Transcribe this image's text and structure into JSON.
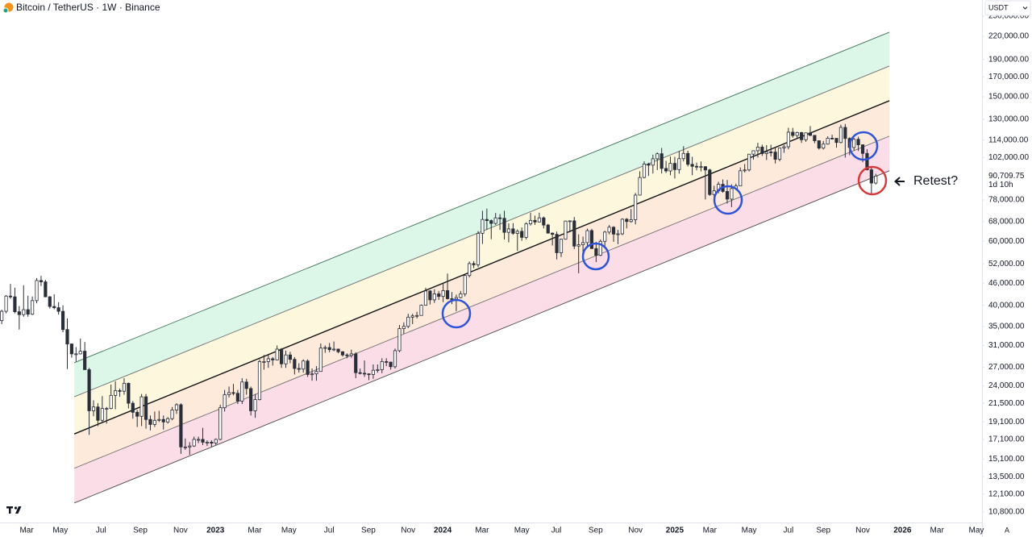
{
  "chart_data": {
    "type": "candlestick",
    "title": "Bitcoin / TetherUS · 1W · Binance",
    "currency": "USDT",
    "auto_button": "A",
    "log_scale": true,
    "grid": false,
    "xlim": [
      -0.4,
      224.3
    ],
    "ylim": [
      10100,
      276800
    ],
    "xticks": [
      {
        "value": 5.7,
        "label": "Mar"
      },
      {
        "value": 13.4,
        "label": "May"
      },
      {
        "value": 22.7,
        "label": "Jul"
      },
      {
        "value": 31.7,
        "label": "Sep"
      },
      {
        "value": 40.9,
        "label": "Nov"
      },
      {
        "value": 48.9,
        "label": "2023"
      },
      {
        "value": 57.9,
        "label": "Mar"
      },
      {
        "value": 65.7,
        "label": "May"
      },
      {
        "value": 74.9,
        "label": "Jul"
      },
      {
        "value": 83.9,
        "label": "Sep"
      },
      {
        "value": 93.0,
        "label": "Nov"
      },
      {
        "value": 100.9,
        "label": "2024"
      },
      {
        "value": 109.9,
        "label": "Mar"
      },
      {
        "value": 119.0,
        "label": "May"
      },
      {
        "value": 126.9,
        "label": "Jul"
      },
      {
        "value": 135.9,
        "label": "Sep"
      },
      {
        "value": 145.0,
        "label": "Nov"
      },
      {
        "value": 154.0,
        "label": "2025"
      },
      {
        "value": 162.0,
        "label": "Mar"
      },
      {
        "value": 171.0,
        "label": "May"
      },
      {
        "value": 180.0,
        "label": "Jul"
      },
      {
        "value": 188.0,
        "label": "Sep"
      },
      {
        "value": 197.0,
        "label": "Nov"
      },
      {
        "value": 206.1,
        "label": "2026"
      },
      {
        "value": 214.0,
        "label": "Mar"
      },
      {
        "value": 223.0,
        "label": "May"
      }
    ],
    "yticks": [
      {
        "value": 10800,
        "label": "10,800.00"
      },
      {
        "value": 12100,
        "label": "12,100.00"
      },
      {
        "value": 13500,
        "label": "13,500.00"
      },
      {
        "value": 15100,
        "label": "15,100.00"
      },
      {
        "value": 17100,
        "label": "17,100.00"
      },
      {
        "value": 19100,
        "label": "19,100.00"
      },
      {
        "value": 21500,
        "label": "21,500.00"
      },
      {
        "value": 24000,
        "label": "24,000.00"
      },
      {
        "value": 27000,
        "label": "27,000.00"
      },
      {
        "value": 31000,
        "label": "31,000.00"
      },
      {
        "value": 35000,
        "label": "35,000.00"
      },
      {
        "value": 40000,
        "label": "40,000.00"
      },
      {
        "value": 46000,
        "label": "46,000.00"
      },
      {
        "value": 52000,
        "label": "52,000.00"
      },
      {
        "value": 60000,
        "label": "60,000.00"
      },
      {
        "value": 68000,
        "label": "68,000.00"
      },
      {
        "value": 78000,
        "label": "78,000.00"
      },
      {
        "value": 102000,
        "label": "102,000.00"
      },
      {
        "value": 114000,
        "label": "114,000.00"
      },
      {
        "value": 130000,
        "label": "130,000.00"
      },
      {
        "value": 150000,
        "label": "150,000.00"
      },
      {
        "value": 170000,
        "label": "170,000.00"
      },
      {
        "value": 190000,
        "label": "190,000.00"
      },
      {
        "value": 220000,
        "label": "220,000.00"
      },
      {
        "value": 250000,
        "label": "250,000.00"
      }
    ],
    "up_color": "#ffffff",
    "down_color": "#2a2e39",
    "border_color": "#2a2e39",
    "ohlc": [
      [
        36300,
        38900,
        35500,
        38500
      ],
      [
        38500,
        42700,
        38000,
        42400
      ],
      [
        42400,
        45800,
        41700,
        42200
      ],
      [
        42200,
        44700,
        38000,
        38400
      ],
      [
        38400,
        39800,
        34300,
        37700
      ],
      [
        37700,
        45400,
        37200,
        38900
      ],
      [
        38900,
        42500,
        37200,
        37800
      ],
      [
        37800,
        42300,
        37600,
        41200
      ],
      [
        41200,
        47500,
        40500,
        46800
      ],
      [
        46800,
        48200,
        45200,
        46400
      ],
      [
        46400,
        47000,
        42100,
        42200
      ],
      [
        42200,
        42400,
        39200,
        39700
      ],
      [
        39700,
        42900,
        39000,
        39400
      ],
      [
        39400,
        40800,
        37700,
        38500
      ],
      [
        38500,
        40000,
        33700,
        34300
      ],
      [
        34300,
        36800,
        26700,
        31300
      ],
      [
        31300,
        31400,
        28700,
        29400
      ],
      [
        29400,
        30700,
        28000,
        29400
      ],
      [
        29400,
        32400,
        29300,
        29900
      ],
      [
        29900,
        31700,
        26600,
        26600
      ],
      [
        26600,
        26900,
        17600,
        20500
      ],
      [
        20500,
        21900,
        19800,
        21000
      ],
      [
        21000,
        21500,
        18600,
        19300
      ],
      [
        19300,
        22500,
        19000,
        20800
      ],
      [
        20800,
        21000,
        18900,
        20800
      ],
      [
        20800,
        24200,
        20700,
        22600
      ],
      [
        22600,
        24700,
        20700,
        23300
      ],
      [
        23300,
        23600,
        22400,
        23200
      ],
      [
        23200,
        25200,
        22700,
        24400
      ],
      [
        24400,
        24500,
        20800,
        21500
      ],
      [
        21500,
        21800,
        19500,
        20300
      ],
      [
        20300,
        20600,
        18500,
        19800
      ],
      [
        19800,
        22800,
        18600,
        22400
      ],
      [
        22400,
        22800,
        18300,
        19400
      ],
      [
        19400,
        19900,
        18100,
        18800
      ],
      [
        18800,
        20400,
        18500,
        19300
      ],
      [
        19300,
        20500,
        19100,
        19400
      ],
      [
        19400,
        19900,
        18200,
        19100
      ],
      [
        19100,
        19700,
        18900,
        19500
      ],
      [
        19500,
        21000,
        19300,
        20600
      ],
      [
        20600,
        21500,
        20100,
        21300
      ],
      [
        21300,
        21500,
        15600,
        16300
      ],
      [
        16300,
        17200,
        16000,
        16300
      ],
      [
        16300,
        16800,
        15500,
        16400
      ],
      [
        16400,
        17400,
        16300,
        17100
      ],
      [
        17100,
        17400,
        16700,
        17100
      ],
      [
        17100,
        18400,
        16500,
        16800
      ],
      [
        16800,
        17000,
        16400,
        16800
      ],
      [
        16800,
        17000,
        16300,
        16700
      ],
      [
        16700,
        17200,
        16500,
        17100
      ],
      [
        17100,
        21300,
        17000,
        20900
      ],
      [
        20900,
        23400,
        20400,
        22700
      ],
      [
        22700,
        23900,
        22300,
        23000
      ],
      [
        23000,
        24300,
        22600,
        22900
      ],
      [
        22900,
        23400,
        21400,
        21800
      ],
      [
        21800,
        25200,
        21400,
        24600
      ],
      [
        24600,
        25100,
        22700,
        23600
      ],
      [
        23600,
        23900,
        19900,
        20500
      ],
      [
        20500,
        22800,
        19600,
        22000
      ],
      [
        22000,
        28400,
        21900,
        28000
      ],
      [
        28000,
        29200,
        26600,
        28000
      ],
      [
        28000,
        29200,
        26900,
        28500
      ],
      [
        28500,
        28800,
        27300,
        28300
      ],
      [
        28300,
        31000,
        28200,
        30300
      ],
      [
        30300,
        30500,
        26900,
        27600
      ],
      [
        27600,
        30000,
        26900,
        29200
      ],
      [
        29200,
        29800,
        27700,
        28400
      ],
      [
        28400,
        28800,
        25800,
        26800
      ],
      [
        26800,
        27700,
        26100,
        26700
      ],
      [
        26700,
        28400,
        26100,
        28100
      ],
      [
        28100,
        28400,
        25400,
        25800
      ],
      [
        25800,
        26800,
        24800,
        25900
      ],
      [
        25900,
        27200,
        24800,
        26300
      ],
      [
        26300,
        31400,
        26300,
        30500
      ],
      [
        30500,
        31000,
        29600,
        30600
      ],
      [
        30600,
        31500,
        29700,
        30200
      ],
      [
        30200,
        31800,
        29900,
        30300
      ],
      [
        30300,
        30400,
        29500,
        29800
      ],
      [
        29800,
        29900,
        28900,
        29200
      ],
      [
        29200,
        29500,
        28600,
        29100
      ],
      [
        29100,
        30200,
        28700,
        29400
      ],
      [
        29400,
        29700,
        25200,
        26100
      ],
      [
        26100,
        26800,
        25800,
        26000
      ],
      [
        26000,
        28200,
        25400,
        25900
      ],
      [
        25900,
        26000,
        24900,
        25800
      ],
      [
        25800,
        27500,
        25100,
        26500
      ],
      [
        26500,
        27500,
        26100,
        26600
      ],
      [
        26600,
        28600,
        26000,
        28000
      ],
      [
        28000,
        28600,
        27200,
        27900
      ],
      [
        27900,
        28000,
        26600,
        27100
      ],
      [
        27100,
        30400,
        26800,
        30000
      ],
      [
        30000,
        35300,
        29700,
        34500
      ],
      [
        34500,
        35900,
        33400,
        35000
      ],
      [
        35000,
        37900,
        34600,
        37100
      ],
      [
        37100,
        37900,
        35500,
        37400
      ],
      [
        37400,
        38400,
        36800,
        37500
      ],
      [
        37500,
        40200,
        37500,
        40000
      ],
      [
        40000,
        44700,
        39900,
        43800
      ],
      [
        43800,
        44000,
        40200,
        41400
      ],
      [
        41400,
        44300,
        40600,
        43000
      ],
      [
        43000,
        43800,
        41400,
        42300
      ],
      [
        42300,
        45900,
        40800,
        43900
      ],
      [
        43900,
        48900,
        41500,
        41700
      ],
      [
        41700,
        43500,
        40300,
        41600
      ],
      [
        41600,
        42800,
        38500,
        42000
      ],
      [
        42000,
        43800,
        41800,
        43000
      ],
      [
        43000,
        48600,
        42300,
        48300
      ],
      [
        48300,
        52800,
        47700,
        52100
      ],
      [
        52100,
        52900,
        50600,
        51700
      ],
      [
        51700,
        64000,
        50900,
        63100
      ],
      [
        63100,
        72800,
        59000,
        68900
      ],
      [
        68900,
        73800,
        64500,
        68400
      ],
      [
        68400,
        68900,
        60800,
        67200
      ],
      [
        67200,
        71800,
        66600,
        69600
      ],
      [
        69600,
        71300,
        64500,
        69400
      ],
      [
        69400,
        72800,
        60700,
        63500
      ],
      [
        63500,
        67200,
        59600,
        64900
      ],
      [
        64900,
        67300,
        62500,
        63100
      ],
      [
        63100,
        64700,
        56500,
        63900
      ],
      [
        63900,
        65500,
        60200,
        61500
      ],
      [
        61500,
        67700,
        60700,
        67000
      ],
      [
        67000,
        71900,
        66300,
        68500
      ],
      [
        68500,
        70600,
        66600,
        67800
      ],
      [
        67800,
        71900,
        67600,
        69600
      ],
      [
        69600,
        70200,
        65100,
        66500
      ],
      [
        66500,
        67000,
        63000,
        63200
      ],
      [
        63200,
        63400,
        58400,
        62700
      ],
      [
        62700,
        63800,
        53500,
        55800
      ],
      [
        55800,
        61000,
        54300,
        60800
      ],
      [
        60800,
        68400,
        60600,
        68200
      ],
      [
        68200,
        68500,
        63500,
        68300
      ],
      [
        68300,
        70000,
        57100,
        58200
      ],
      [
        58200,
        62700,
        49000,
        58700
      ],
      [
        58700,
        61800,
        56100,
        59500
      ],
      [
        59500,
        65000,
        57800,
        64200
      ],
      [
        64200,
        64900,
        57200,
        57300
      ],
      [
        57300,
        59800,
        52600,
        54900
      ],
      [
        54900,
        60700,
        54600,
        60000
      ],
      [
        60000,
        64100,
        57500,
        63600
      ],
      [
        63600,
        66500,
        62700,
        65600
      ],
      [
        65600,
        66000,
        59800,
        62800
      ],
      [
        62800,
        64500,
        58900,
        62900
      ],
      [
        62900,
        69400,
        62400,
        69000
      ],
      [
        69000,
        69500,
        65100,
        68000
      ],
      [
        68000,
        73600,
        67500,
        68800
      ],
      [
        68800,
        81500,
        66800,
        80400
      ],
      [
        80400,
        93500,
        80300,
        89900
      ],
      [
        89900,
        99600,
        89400,
        97900
      ],
      [
        97900,
        98700,
        90800,
        97200
      ],
      [
        97200,
        103900,
        92200,
        101200
      ],
      [
        101200,
        105300,
        94200,
        104500
      ],
      [
        104500,
        108400,
        92200,
        95200
      ],
      [
        95200,
        99900,
        92500,
        93700
      ],
      [
        93700,
        102700,
        91200,
        98300
      ],
      [
        98300,
        102500,
        89300,
        94500
      ],
      [
        94500,
        106400,
        92100,
        101300
      ],
      [
        101300,
        109600,
        99500,
        104700
      ],
      [
        104700,
        106500,
        96400,
        97700
      ],
      [
        97700,
        102500,
        91200,
        96500
      ],
      [
        96500,
        98800,
        94100,
        96200
      ],
      [
        96200,
        99500,
        93400,
        96300
      ],
      [
        96300,
        96500,
        78200,
        94300
      ],
      [
        94300,
        95000,
        80000,
        80700
      ],
      [
        80700,
        85300,
        76600,
        82600
      ],
      [
        82600,
        87500,
        81300,
        86100
      ],
      [
        86100,
        88800,
        81600,
        82300
      ],
      [
        82300,
        88500,
        76200,
        78400
      ],
      [
        78400,
        86100,
        74500,
        83800
      ],
      [
        83800,
        86500,
        83000,
        85200
      ],
      [
        85200,
        95800,
        85100,
        93800
      ],
      [
        93800,
        97900,
        92800,
        94300
      ],
      [
        94300,
        104300,
        93400,
        104200
      ],
      [
        104200,
        106700,
        100700,
        106500
      ],
      [
        106500,
        112000,
        102000,
        109000
      ],
      [
        109000,
        110700,
        103100,
        104600
      ],
      [
        104600,
        110400,
        100400,
        105700
      ],
      [
        105700,
        110600,
        102700,
        105600
      ],
      [
        105600,
        108900,
        98200,
        100900
      ],
      [
        100900,
        108500,
        99600,
        108400
      ],
      [
        108400,
        110500,
        105100,
        109200
      ],
      [
        109200,
        123200,
        107500,
        119800
      ],
      [
        119800,
        123100,
        115700,
        117300
      ],
      [
        117300,
        120200,
        114700,
        119500
      ],
      [
        119500,
        120000,
        111900,
        114200
      ],
      [
        114200,
        119300,
        112700,
        119300
      ],
      [
        119300,
        124500,
        116800,
        117400
      ],
      [
        117400,
        117600,
        111700,
        113500
      ],
      [
        113500,
        113700,
        107300,
        108300
      ],
      [
        108300,
        113300,
        107300,
        111100
      ],
      [
        111100,
        116700,
        110700,
        115300
      ],
      [
        115300,
        117900,
        114400,
        115200
      ],
      [
        115200,
        115400,
        108600,
        112200
      ],
      [
        112200,
        125600,
        111700,
        123500
      ],
      [
        123500,
        126200,
        102000,
        115100
      ],
      [
        115100,
        116000,
        103500,
        108700
      ],
      [
        108700,
        115500,
        106600,
        114500
      ],
      [
        114500,
        116400,
        106300,
        110600
      ],
      [
        110600,
        110800,
        99000,
        104700
      ],
      [
        104700,
        107500,
        94000,
        94400
      ],
      [
        94400,
        96600,
        80600,
        86800
      ],
      [
        86800,
        92000,
        86000,
        90709.75
      ]
    ],
    "channel": {
      "x": [
        16.6,
        203.1
      ],
      "lines": [
        [
          27800,
          225700
        ],
        [
          22400,
          182100
        ],
        [
          17700,
          146200
        ],
        [
          14240,
          116800
        ],
        [
          11430,
          93800
        ]
      ],
      "line_colors": [
        "#3f6f57",
        "#6e6e6e",
        "#111111",
        "#6e6e6e",
        "#4a4a4a"
      ],
      "fill_colors": [
        "#dcf6e8",
        "#fdf7de",
        "#fdeadb",
        "#fbdde8"
      ]
    },
    "last_price": {
      "value": 90709.75,
      "label": "90,709.75"
    },
    "countdown": "1d 10h",
    "annotation": "Retest?"
  }
}
